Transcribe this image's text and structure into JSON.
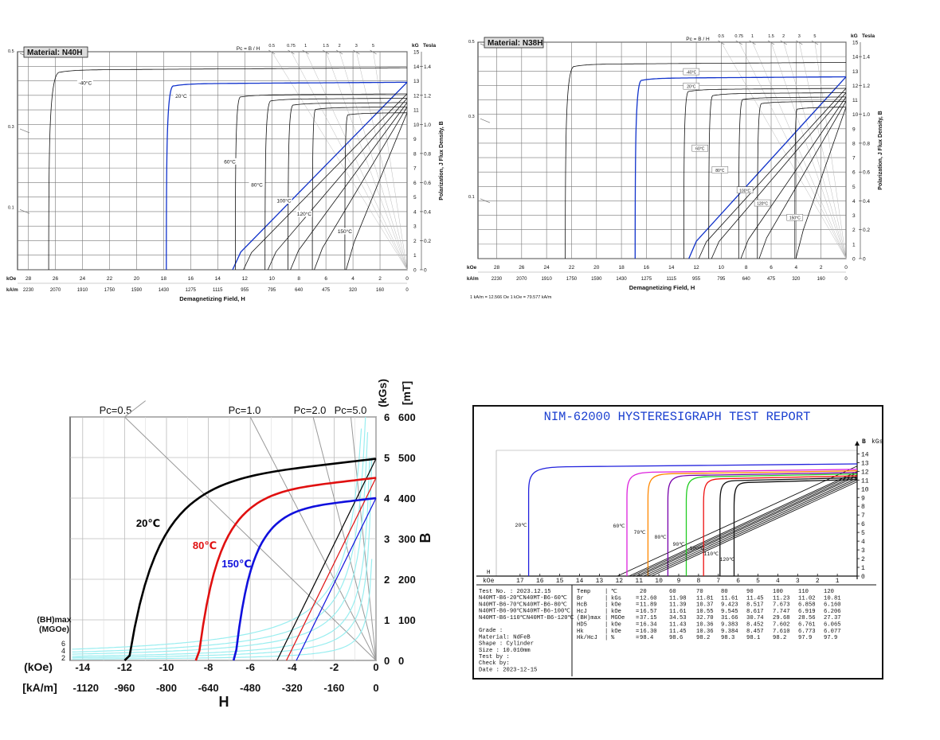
{
  "chart_data": [
    {
      "id": "n40h",
      "type": "line",
      "material_label": "Material: N40H",
      "x_unit_top": "kOe",
      "x_unit_bottom": "kA/m",
      "x_ticks_koe": [
        "28",
        "26",
        "24",
        "22",
        "20",
        "18",
        "16",
        "14",
        "12",
        "10",
        "8",
        "6",
        "4",
        "2",
        "0"
      ],
      "x_ticks_kam": [
        "2230",
        "2070",
        "1910",
        "1750",
        "1590",
        "1430",
        "1275",
        "1115",
        "955",
        "795",
        "640",
        "475",
        "320",
        "160",
        "0"
      ],
      "xlabel": "Demagnetizing Field, H",
      "y_unit_left": "kG",
      "y_unit_right": "Tesla",
      "y_ticks_kg": [
        "15",
        "14",
        "13",
        "12",
        "11",
        "10",
        "9",
        "8",
        "7",
        "6",
        "5",
        "4",
        "3",
        "2",
        "1",
        "0"
      ],
      "y_ticks_tesla": [
        "1.4",
        "1.2",
        "1.0",
        "0.8",
        "0.6",
        "0.4",
        "0.2",
        "0"
      ],
      "ylabel": "Polarization,  J    Flux Density, B",
      "pc_label": "Pc = B / H",
      "pc_ticks": [
        "0.5",
        "0.75",
        "1",
        "1.5",
        "2",
        "3",
        "5"
      ],
      "pc_left_ticks": [
        "0.5",
        "0.3",
        "0.1"
      ],
      "xlim_koe": [
        28.8,
        0
      ],
      "ylim_kg": [
        0,
        15
      ],
      "series": [
        {
          "name": "-40°C",
          "color": "#111111",
          "J_kg": 13.9,
          "Br_kg": 12.9,
          "HcJ_koe": 26.5
        },
        {
          "name": "20°C",
          "color": "#1133cc",
          "J_kg": 12.9,
          "Br_kg": 12.9,
          "HcJ_koe": 17.8
        },
        {
          "name": "60°C",
          "color": "#111111",
          "J_kg": 12.1,
          "Br_kg": 12.1,
          "HcJ_koe": 12.7
        },
        {
          "name": "80°C",
          "color": "#111111",
          "J_kg": 11.8,
          "Br_kg": 11.8,
          "HcJ_koe": 10.5
        },
        {
          "name": "100°C",
          "color": "#111111",
          "J_kg": 11.5,
          "Br_kg": 11.5,
          "HcJ_koe": 8.8
        },
        {
          "name": "120°C",
          "color": "#111111",
          "J_kg": 11.2,
          "Br_kg": 11.2,
          "HcJ_koe": 7.0
        },
        {
          "name": "150°C",
          "color": "#111111",
          "J_kg": 10.8,
          "Br_kg": 10.8,
          "HcJ_koe": 4.6
        }
      ]
    },
    {
      "id": "n38h",
      "type": "line",
      "material_label": "Material: N38H",
      "x_unit_top": "kOe",
      "x_unit_bottom": "kA/m",
      "x_ticks_koe": [
        "28",
        "26",
        "24",
        "22",
        "20",
        "18",
        "16",
        "14",
        "12",
        "10",
        "8",
        "6",
        "4",
        "2",
        "0"
      ],
      "x_ticks_kam": [
        "2230",
        "2070",
        "1910",
        "1750",
        "1590",
        "1430",
        "1275",
        "1115",
        "955",
        "795",
        "640",
        "475",
        "320",
        "160",
        "0"
      ],
      "xlabel": "Demagnetizing Field, H",
      "footnote": "1 kA/m = 12.566 Oe    1 kOe = 79.577 kA/m",
      "y_unit_left": "kG",
      "y_unit_right": "Tesla",
      "y_ticks_kg": [
        "15",
        "14",
        "13",
        "12",
        "11",
        "10",
        "9",
        "8",
        "7",
        "6",
        "5",
        "4",
        "3",
        "2",
        "1",
        "0"
      ],
      "y_ticks_tesla": [
        "1.4",
        "1.2",
        "1.0",
        "0.8",
        "0.6",
        "0.4",
        "0.2",
        "0"
      ],
      "ylabel": "Polarization,  J    Flux Density, B",
      "pc_label": "Pc = B / H",
      "pc_ticks": [
        "0.5",
        "0.75",
        "1",
        "1.5",
        "2",
        "3",
        "5"
      ],
      "pc_left_ticks": [
        "0.5",
        "0.3",
        "0.1"
      ],
      "xlim_koe": [
        29.5,
        0
      ],
      "ylim_kg": [
        0,
        15
      ],
      "series": [
        {
          "name": "-40°C",
          "color": "#111111",
          "J_kg": 13.6,
          "Br_kg": 12.6,
          "HcJ_koe": 22.5
        },
        {
          "name": "20°C",
          "color": "#1133cc",
          "J_kg": 12.6,
          "Br_kg": 12.6,
          "HcJ_koe": 16.9
        },
        {
          "name": "60°C",
          "color": "#111111",
          "J_kg": 11.8,
          "Br_kg": 11.8,
          "HcJ_koe": 13.0
        },
        {
          "name": "80°C",
          "color": "#111111",
          "J_kg": 11.5,
          "Br_kg": 11.5,
          "HcJ_koe": 11.0
        },
        {
          "name": "100°C",
          "color": "#111111",
          "J_kg": 11.2,
          "Br_kg": 11.2,
          "HcJ_koe": 8.6
        },
        {
          "name": "120°C",
          "color": "#111111",
          "J_kg": 10.9,
          "Br_kg": 10.9,
          "HcJ_koe": 7.1
        },
        {
          "name": "150°C",
          "color": "#111111",
          "J_kg": 10.5,
          "Br_kg": 10.5,
          "HcJ_koe": 4.1
        }
      ]
    },
    {
      "id": "bh",
      "type": "line",
      "x_ticks_koe": [
        "-14",
        "-12",
        "-10",
        "-8",
        "-6",
        "-4",
        "-2",
        "0"
      ],
      "x_ticks_kam": [
        "-1120",
        "-960",
        "-800",
        "-640",
        "-480",
        "-320",
        "-160",
        "0"
      ],
      "x_unit_koe": "(kOe)",
      "x_unit_kam": "[kA/m]",
      "xlabel": "H",
      "y_ticks_kgs": [
        "0",
        "1",
        "2",
        "3",
        "4",
        "5",
        "6"
      ],
      "y_ticks_mt": [
        "0",
        "100",
        "200",
        "300",
        "400",
        "500",
        "600"
      ],
      "y_unit_kgs": "(kGs)",
      "y_unit_mt": "[mT]",
      "ylabel": "B",
      "pc_lines": [
        "Pc=0.5",
        "Pc=1.0",
        "Pc=2.0",
        "Pc=5.0"
      ],
      "bhmax_label": "(BH)max",
      "bhmax_unit": "(MGOe)",
      "bhmax_ticks": [
        "6",
        "4",
        "2"
      ],
      "xlim_koe": [
        -14.6,
        0
      ],
      "ylim_kgs": [
        0,
        6
      ],
      "series": [
        {
          "name": "20℃",
          "color": "#000000",
          "Br": 4.97,
          "Hc": -12.0
        },
        {
          "name": "80℃",
          "color": "#e01010",
          "Br": 4.5,
          "Hc": -8.6
        },
        {
          "name": "150℃",
          "color": "#1010dd",
          "Br": 4.0,
          "Hc": -6.8
        }
      ]
    },
    {
      "id": "report",
      "type": "table",
      "title": "NIM-62000 HYSTERESIGRAPH TEST REPORT",
      "y_unit": "B",
      "y_unit2": "kGs",
      "y_ticks": [
        "14",
        "13",
        "12",
        "11",
        "10",
        "9",
        "8",
        "7",
        "6",
        "5",
        "4",
        "3",
        "2",
        "1",
        "0"
      ],
      "x_unit_h": "H",
      "x_unit": "kOe",
      "x_ticks": [
        "17",
        "16",
        "15",
        "14",
        "13",
        "12",
        "11",
        "10",
        "9",
        "8",
        "7",
        "6",
        "5",
        "4",
        "3",
        "2",
        "1"
      ],
      "ylim": [
        0,
        14.4
      ],
      "xlim": [
        18.2,
        0
      ],
      "series": [
        {
          "name": "20℃",
          "color": "#2222dd",
          "Br": 12.6,
          "HcJ": 16.57
        },
        {
          "name": "60℃",
          "color": "#dd22dd",
          "Br": 11.98,
          "HcJ": 11.61
        },
        {
          "name": "70℃",
          "color": "#ff8800",
          "Br": 11.81,
          "HcJ": 10.55
        },
        {
          "name": "80℃",
          "color": "#7700aa",
          "Br": 11.61,
          "HcJ": 9.545
        },
        {
          "name": "90℃",
          "color": "#22cc22",
          "Br": 11.45,
          "HcJ": 8.617
        },
        {
          "name": "100℃",
          "color": "#ee1111",
          "Br": 11.23,
          "HcJ": 7.747
        },
        {
          "name": "110℃",
          "color": "#111111",
          "Br": 11.02,
          "HcJ": 6.919
        },
        {
          "name": "120℃",
          "color": "#111111",
          "Br": 10.81,
          "HcJ": 6.206
        }
      ],
      "info_lines": [
        "Test No.  : 2023.12.15",
        "N40MT-B6-20℃N40MT-B6-60℃",
        "N40MT-B6-70℃N40MT-B6-80℃",
        "N40MT-B6-90℃N40MT-B6-100℃",
        "N40MT-B6-110℃N40MT-B6-120℃",
        "",
        "Grade     :",
        "Material: NdFeB",
        "Shape     : Cylinder",
        "Size      : 10.010mm",
        "Test by   :",
        "Check by:",
        "Date      : 2023-12-15"
      ],
      "table_rows": [
        [
          "Temp",
          "|",
          "℃",
          "",
          "20",
          "60",
          "70",
          "80",
          "90",
          "100",
          "110",
          "120"
        ],
        [
          "Br",
          "|",
          "kGs",
          "=",
          "12.60",
          "11.98",
          "11.81",
          "11.61",
          "11.45",
          "11.23",
          "11.02",
          "10.81"
        ],
        [
          "HcB",
          "|",
          "kOe",
          "=",
          "11.89",
          "11.39",
          "10.37",
          "9.423",
          "8.517",
          "7.673",
          "6.858",
          "6.160"
        ],
        [
          "HcJ",
          "|",
          "kOe",
          "=",
          "16.57",
          "11.61",
          "10.55",
          "9.545",
          "8.617",
          "7.747",
          "6.919",
          "6.206"
        ],
        [
          "(BH)max",
          "|",
          "MGOe",
          "=",
          "37.15",
          "34.53",
          "32.70",
          "31.66",
          "30.74",
          "29.68",
          "28.56",
          "27.37"
        ],
        [
          "HD5",
          "|",
          "kOe",
          "=",
          "16.34",
          "11.43",
          "10.36",
          "9.383",
          "8.452",
          "7.602",
          "6.761",
          "6.065"
        ],
        [
          "Hk",
          "|",
          "kOe",
          "=",
          "16.30",
          "11.45",
          "10.36",
          "9.384",
          "8.457",
          "7.610",
          "6.773",
          "6.077"
        ],
        [
          "Hk/HcJ",
          "|",
          "%",
          "=",
          "98.4",
          "98.6",
          "98.2",
          "98.3",
          "98.1",
          "98.2",
          "97.9",
          "97.9"
        ]
      ]
    }
  ]
}
